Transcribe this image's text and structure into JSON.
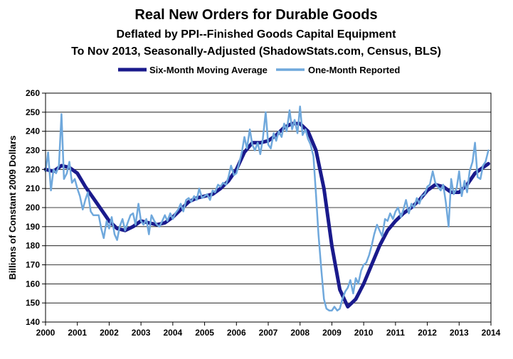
{
  "chart_data": {
    "type": "line",
    "title": "Real New Orders for Durable Goods",
    "subtitle1": "Deflated by PPI--Finished Goods Capital Equipment",
    "subtitle2": "To Nov 2013, Seasonally-Adjusted  (ShadowStats.com, Census, BLS)",
    "xlabel": "",
    "ylabel": "Billions of Constant 2009 Dollars",
    "xlim": [
      2000,
      2014
    ],
    "ylim": [
      140,
      260
    ],
    "x_ticks": [
      "2000",
      "2001",
      "2002",
      "2003",
      "2004",
      "2005",
      "2006",
      "2007",
      "2008",
      "2009",
      "2010",
      "2011",
      "2012",
      "2013",
      "2014"
    ],
    "y_ticks": [
      "140",
      "150",
      "160",
      "170",
      "180",
      "190",
      "200",
      "210",
      "220",
      "230",
      "240",
      "250",
      "260"
    ],
    "grid": true,
    "legend_position": "top",
    "series": [
      {
        "name": "Six-Month Moving Average",
        "color": "#1a1a8c",
        "points": [
          [
            2000.0,
            220
          ],
          [
            2000.25,
            219
          ],
          [
            2000.5,
            222
          ],
          [
            2000.75,
            221
          ],
          [
            2001.0,
            218
          ],
          [
            2001.25,
            211
          ],
          [
            2001.5,
            205
          ],
          [
            2001.75,
            199
          ],
          [
            2002.0,
            193
          ],
          [
            2002.25,
            189
          ],
          [
            2002.5,
            188
          ],
          [
            2002.75,
            190
          ],
          [
            2003.0,
            193
          ],
          [
            2003.25,
            192
          ],
          [
            2003.5,
            191
          ],
          [
            2003.75,
            192
          ],
          [
            2004.0,
            195
          ],
          [
            2004.25,
            199
          ],
          [
            2004.5,
            203
          ],
          [
            2004.75,
            205
          ],
          [
            2005.0,
            206
          ],
          [
            2005.25,
            207
          ],
          [
            2005.5,
            210
          ],
          [
            2005.75,
            214
          ],
          [
            2006.0,
            220
          ],
          [
            2006.25,
            229
          ],
          [
            2006.5,
            234
          ],
          [
            2006.75,
            234
          ],
          [
            2007.0,
            235
          ],
          [
            2007.25,
            238
          ],
          [
            2007.5,
            242
          ],
          [
            2007.75,
            244
          ],
          [
            2008.0,
            244
          ],
          [
            2008.25,
            240
          ],
          [
            2008.5,
            230
          ],
          [
            2008.75,
            210
          ],
          [
            2009.0,
            180
          ],
          [
            2009.25,
            157
          ],
          [
            2009.5,
            148
          ],
          [
            2009.75,
            152
          ],
          [
            2010.0,
            160
          ],
          [
            2010.25,
            170
          ],
          [
            2010.5,
            180
          ],
          [
            2010.75,
            188
          ],
          [
            2011.0,
            193
          ],
          [
            2011.25,
            197
          ],
          [
            2011.5,
            200
          ],
          [
            2011.75,
            204
          ],
          [
            2012.0,
            209
          ],
          [
            2012.25,
            212
          ],
          [
            2012.5,
            211
          ],
          [
            2012.75,
            208
          ],
          [
            2013.0,
            208
          ],
          [
            2013.25,
            212
          ],
          [
            2013.5,
            218
          ],
          [
            2013.75,
            221
          ],
          [
            2013.92,
            223
          ]
        ]
      },
      {
        "name": "One-Month Reported",
        "color": "#6fa8dc",
        "points": [
          [
            2000.0,
            219
          ],
          [
            2000.08,
            229
          ],
          [
            2000.17,
            209
          ],
          [
            2000.25,
            220
          ],
          [
            2000.33,
            218
          ],
          [
            2000.42,
            222
          ],
          [
            2000.5,
            249
          ],
          [
            2000.58,
            215
          ],
          [
            2000.67,
            218
          ],
          [
            2000.75,
            224
          ],
          [
            2000.83,
            213
          ],
          [
            2000.92,
            215
          ],
          [
            2001.0,
            210
          ],
          [
            2001.08,
            206
          ],
          [
            2001.17,
            199
          ],
          [
            2001.25,
            204
          ],
          [
            2001.33,
            208
          ],
          [
            2001.42,
            198
          ],
          [
            2001.5,
            196
          ],
          [
            2001.58,
            196
          ],
          [
            2001.67,
            196
          ],
          [
            2001.75,
            189
          ],
          [
            2001.83,
            184
          ],
          [
            2001.92,
            193
          ],
          [
            2002.0,
            189
          ],
          [
            2002.08,
            195
          ],
          [
            2002.17,
            186
          ],
          [
            2002.25,
            183
          ],
          [
            2002.33,
            190
          ],
          [
            2002.42,
            194
          ],
          [
            2002.5,
            188
          ],
          [
            2002.58,
            192
          ],
          [
            2002.67,
            196
          ],
          [
            2002.75,
            197
          ],
          [
            2002.83,
            191
          ],
          [
            2002.92,
            202
          ],
          [
            2003.0,
            193
          ],
          [
            2003.08,
            191
          ],
          [
            2003.17,
            194
          ],
          [
            2003.25,
            186
          ],
          [
            2003.33,
            196
          ],
          [
            2003.42,
            193
          ],
          [
            2003.5,
            191
          ],
          [
            2003.58,
            190
          ],
          [
            2003.67,
            193
          ],
          [
            2003.75,
            196
          ],
          [
            2003.83,
            193
          ],
          [
            2003.92,
            197
          ],
          [
            2004.0,
            194
          ],
          [
            2004.08,
            197
          ],
          [
            2004.17,
            199
          ],
          [
            2004.25,
            202
          ],
          [
            2004.33,
            198
          ],
          [
            2004.42,
            204
          ],
          [
            2004.5,
            205
          ],
          [
            2004.58,
            203
          ],
          [
            2004.67,
            206
          ],
          [
            2004.75,
            204
          ],
          [
            2004.83,
            210
          ],
          [
            2004.92,
            205
          ],
          [
            2005.0,
            206
          ],
          [
            2005.08,
            207
          ],
          [
            2005.17,
            204
          ],
          [
            2005.25,
            209
          ],
          [
            2005.33,
            208
          ],
          [
            2005.42,
            212
          ],
          [
            2005.5,
            211
          ],
          [
            2005.58,
            213
          ],
          [
            2005.67,
            212
          ],
          [
            2005.75,
            216
          ],
          [
            2005.83,
            222
          ],
          [
            2005.92,
            217
          ],
          [
            2006.0,
            218
          ],
          [
            2006.08,
            223
          ],
          [
            2006.17,
            229
          ],
          [
            2006.25,
            237
          ],
          [
            2006.33,
            231
          ],
          [
            2006.42,
            241
          ],
          [
            2006.5,
            233
          ],
          [
            2006.58,
            230
          ],
          [
            2006.67,
            234
          ],
          [
            2006.75,
            228
          ],
          [
            2006.83,
            236
          ],
          [
            2006.92,
            250
          ],
          [
            2007.0,
            233
          ],
          [
            2007.08,
            231
          ],
          [
            2007.17,
            239
          ],
          [
            2007.25,
            235
          ],
          [
            2007.33,
            240
          ],
          [
            2007.42,
            237
          ],
          [
            2007.5,
            244
          ],
          [
            2007.58,
            240
          ],
          [
            2007.67,
            251
          ],
          [
            2007.75,
            241
          ],
          [
            2007.83,
            246
          ],
          [
            2007.92,
            239
          ],
          [
            2008.0,
            253
          ],
          [
            2008.08,
            238
          ],
          [
            2008.17,
            241
          ],
          [
            2008.25,
            236
          ],
          [
            2008.33,
            233
          ],
          [
            2008.42,
            227
          ],
          [
            2008.5,
            207
          ],
          [
            2008.58,
            186
          ],
          [
            2008.67,
            167
          ],
          [
            2008.75,
            152
          ],
          [
            2008.83,
            147
          ],
          [
            2008.92,
            146
          ],
          [
            2009.0,
            146
          ],
          [
            2009.08,
            148
          ],
          [
            2009.17,
            146
          ],
          [
            2009.25,
            147
          ],
          [
            2009.33,
            152
          ],
          [
            2009.42,
            156
          ],
          [
            2009.5,
            158
          ],
          [
            2009.58,
            162
          ],
          [
            2009.67,
            155
          ],
          [
            2009.75,
            163
          ],
          [
            2009.83,
            160
          ],
          [
            2009.92,
            167
          ],
          [
            2010.0,
            170
          ],
          [
            2010.08,
            171
          ],
          [
            2010.17,
            175
          ],
          [
            2010.25,
            180
          ],
          [
            2010.33,
            186
          ],
          [
            2010.42,
            191
          ],
          [
            2010.5,
            188
          ],
          [
            2010.58,
            185
          ],
          [
            2010.67,
            194
          ],
          [
            2010.75,
            193
          ],
          [
            2010.83,
            197
          ],
          [
            2010.92,
            194
          ],
          [
            2011.0,
            198
          ],
          [
            2011.08,
            200
          ],
          [
            2011.17,
            195
          ],
          [
            2011.25,
            199
          ],
          [
            2011.33,
            204
          ],
          [
            2011.42,
            197
          ],
          [
            2011.5,
            202
          ],
          [
            2011.58,
            200
          ],
          [
            2011.67,
            205
          ],
          [
            2011.75,
            202
          ],
          [
            2011.83,
            206
          ],
          [
            2011.92,
            207
          ],
          [
            2012.0,
            211
          ],
          [
            2012.08,
            212
          ],
          [
            2012.17,
            219
          ],
          [
            2012.25,
            213
          ],
          [
            2012.33,
            211
          ],
          [
            2012.42,
            209
          ],
          [
            2012.5,
            212
          ],
          [
            2012.58,
            203
          ],
          [
            2012.67,
            190
          ],
          [
            2012.75,
            215
          ],
          [
            2012.83,
            207
          ],
          [
            2012.92,
            210
          ],
          [
            2013.0,
            219
          ],
          [
            2013.08,
            206
          ],
          [
            2013.17,
            214
          ],
          [
            2013.25,
            208
          ],
          [
            2013.33,
            219
          ],
          [
            2013.42,
            224
          ],
          [
            2013.5,
            234
          ],
          [
            2013.58,
            216
          ],
          [
            2013.67,
            215
          ],
          [
            2013.75,
            222
          ],
          [
            2013.83,
            224
          ],
          [
            2013.92,
            230
          ]
        ]
      }
    ]
  }
}
